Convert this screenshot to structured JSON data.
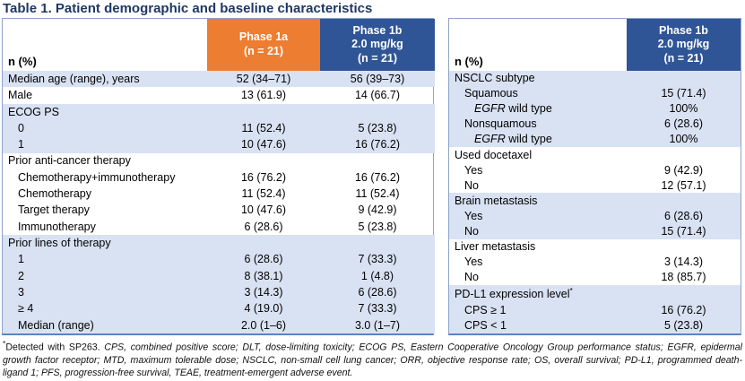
{
  "title": "Table 1. Patient demographic and baseline characteristics",
  "colors": {
    "title-color": "#1F3864",
    "phase1a": "#ED7D31",
    "phase1b": "#2F5597",
    "row-shade": "#D9E2F3",
    "border": "#8EA3C8",
    "border-bottom": "#5B84C0"
  },
  "left_table": {
    "value_columns": 2,
    "header": {
      "label": "n (%)",
      "columns": [
        {
          "label": "Phase 1a\n(n = 21)",
          "color": "#ED7D31"
        },
        {
          "label": "Phase 1b\n2.0 mg/kg\n(n = 21)",
          "color": "#2F5597"
        }
      ]
    },
    "rows": [
      {
        "label": "Median age (range), years",
        "indent": 0,
        "shaded": true,
        "values": [
          "52 (34–71)",
          "56 (39–73)"
        ]
      },
      {
        "label": "Male",
        "indent": 0,
        "shaded": false,
        "values": [
          "13 (61.9)",
          "14 (66.7)"
        ]
      },
      {
        "label": "ECOG PS",
        "indent": 0,
        "shaded": true,
        "values": [
          "",
          ""
        ]
      },
      {
        "label": "0",
        "indent": 1,
        "shaded": true,
        "values": [
          "11 (52.4)",
          "5 (23.8)"
        ]
      },
      {
        "label": "1",
        "indent": 1,
        "shaded": true,
        "values": [
          "10 (47.6)",
          "16 (76.2)"
        ]
      },
      {
        "label": "Prior anti-cancer therapy",
        "indent": 0,
        "shaded": false,
        "values": [
          "",
          ""
        ]
      },
      {
        "label": "Chemotherapy+immunotherapy",
        "indent": 1,
        "shaded": false,
        "values": [
          "16 (76.2)",
          "16 (76.2)"
        ]
      },
      {
        "label": "Chemotherapy",
        "indent": 1,
        "shaded": false,
        "values": [
          "11 (52.4)",
          "11 (52.4)"
        ]
      },
      {
        "label": "Target therapy",
        "indent": 1,
        "shaded": false,
        "values": [
          "10 (47.6)",
          "9 (42.9)"
        ]
      },
      {
        "label": "Immunotherapy",
        "indent": 1,
        "shaded": false,
        "values": [
          "6 (28.6)",
          "5 (23.8)"
        ]
      },
      {
        "label": "Prior lines of therapy",
        "indent": 0,
        "shaded": true,
        "values": [
          "",
          ""
        ]
      },
      {
        "label": "1",
        "indent": 1,
        "shaded": true,
        "values": [
          "6 (28.6)",
          "7 (33.3)"
        ]
      },
      {
        "label": "2",
        "indent": 1,
        "shaded": true,
        "values": [
          "8 (38.1)",
          "1 (4.8)"
        ]
      },
      {
        "label": "3",
        "indent": 1,
        "shaded": true,
        "values": [
          "3 (14.3)",
          "6 (28.6)"
        ]
      },
      {
        "label": "≥ 4",
        "indent": 1,
        "shaded": true,
        "values": [
          "4 (19.0)",
          "7 (33.3)"
        ]
      },
      {
        "label": "Median (range)",
        "indent": 1,
        "shaded": true,
        "values": [
          "2.0 (1–6)",
          "3.0 (1–7)"
        ]
      }
    ]
  },
  "right_table": {
    "value_columns": 1,
    "header": {
      "label": "n (%)",
      "columns": [
        {
          "label": "Phase 1b\n2.0 mg/kg\n(n = 21)",
          "color": "#2F5597"
        }
      ]
    },
    "rows": [
      {
        "label": "NSCLC subtype",
        "indent": 0,
        "shaded": true,
        "values": [
          ""
        ]
      },
      {
        "label": "Squamous",
        "indent": 1,
        "shaded": true,
        "values": [
          "15 (71.4)"
        ]
      },
      {
        "label": " wild type",
        "italic_prefix": "EGFR",
        "indent": 2,
        "shaded": true,
        "values": [
          "100%"
        ]
      },
      {
        "label": "Nonsquamous",
        "indent": 1,
        "shaded": true,
        "values": [
          "6 (28.6)"
        ]
      },
      {
        "label": " wild type",
        "italic_prefix": "EGFR",
        "indent": 2,
        "shaded": true,
        "values": [
          "100%"
        ]
      },
      {
        "label": "Used docetaxel",
        "indent": 0,
        "shaded": false,
        "values": [
          ""
        ]
      },
      {
        "label": "Yes",
        "indent": 1,
        "shaded": false,
        "values": [
          "9 (42.9)"
        ]
      },
      {
        "label": "No",
        "indent": 1,
        "shaded": false,
        "values": [
          "12 (57.1)"
        ]
      },
      {
        "label": "Brain metastasis",
        "indent": 0,
        "shaded": true,
        "values": [
          ""
        ]
      },
      {
        "label": "Yes",
        "indent": 1,
        "shaded": true,
        "values": [
          "6 (28.6)"
        ]
      },
      {
        "label": "No",
        "indent": 1,
        "shaded": true,
        "values": [
          "15 (71.4)"
        ]
      },
      {
        "label": "Liver metastasis",
        "indent": 0,
        "shaded": false,
        "values": [
          ""
        ]
      },
      {
        "label": "Yes",
        "indent": 1,
        "shaded": false,
        "values": [
          "3 (14.3)"
        ]
      },
      {
        "label": "No",
        "indent": 1,
        "shaded": false,
        "values": [
          "18 (85.7)"
        ]
      },
      {
        "label": "PD-L1 expression level",
        "sup": "*",
        "indent": 0,
        "shaded": true,
        "values": [
          ""
        ]
      },
      {
        "label": "CPS ≥ 1",
        "indent": 1,
        "shaded": true,
        "values": [
          "16 (76.2)"
        ]
      },
      {
        "label": "CPS < 1",
        "indent": 1,
        "shaded": true,
        "values": [
          "5 (23.8)"
        ]
      }
    ]
  },
  "footnote": {
    "marker": "*",
    "lead": "Detected with SP263.",
    "abbreviations": " CPS, combined positive score; DLT, dose-limiting toxicity; ECOG PS, Eastern Cooperative Oncology Group performance status; EGFR, epidermal growth factor receptor; MTD, maximum tolerable dose; NSCLC, non-small cell lung cancer; ORR, objective response rate; OS, overall survival; PD-L1, programmed death-ligand 1; PFS, progression-free survival, TEAE, treatment-emergent adverse event."
  }
}
